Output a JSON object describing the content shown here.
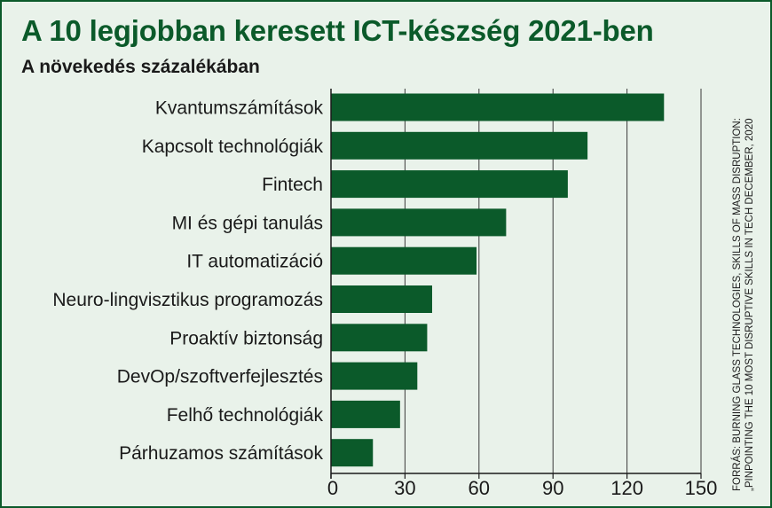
{
  "title": "A 10 legjobban keresett ICT-készség 2021-ben",
  "subtitle": "A növekedés százalékában",
  "source": {
    "line1": "FORRÁS: BURNING GLASS TECHNOLOGIES, SKILLS OF MASS DISRUPTION:",
    "line2": "„PINPOINTING THE 10 MOST DISRUPTIVE SKILLS IN TECH DECEMBER, 2020"
  },
  "colors": {
    "bar": "#0b5a2a",
    "background": "#e9f2ea",
    "title": "#0b5a2a"
  },
  "chart_data": {
    "type": "bar",
    "orientation": "horizontal",
    "title": "A 10 legjobban keresett ICT-készség 2021-ben",
    "subtitle": "A növekedés százalékában",
    "categories": [
      "Kvantumszámítások",
      "Kapcsolt technológiák",
      "Fintech",
      "MI és gépi tanulás",
      "IT automatizáció",
      "Neuro-lingvisztikus programozás",
      "Proaktív biztonság",
      "DevOp/szoftverfejlesztés",
      "Felhő technológiák",
      "Párhuzamos számítások"
    ],
    "values": [
      135,
      104,
      96,
      71,
      59,
      41,
      39,
      35,
      28,
      17
    ],
    "xlim": [
      0,
      150
    ],
    "xticks": [
      0,
      30,
      60,
      90,
      120,
      150
    ],
    "grid": true
  }
}
